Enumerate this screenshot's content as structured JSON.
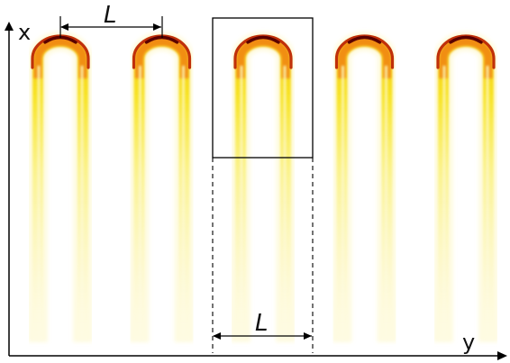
{
  "axes": {
    "x_label": "x",
    "y_label": "y"
  },
  "spacing": {
    "top_label": "L",
    "bottom_label": "L"
  },
  "flames": {
    "count": 5,
    "colors": {
      "tip": "#5a0000",
      "edge": "#c0300a",
      "orange": "#ef7a10",
      "yellow": "#f7e21a",
      "pale": "#fbf3a8",
      "fade": "#fefcea"
    }
  }
}
